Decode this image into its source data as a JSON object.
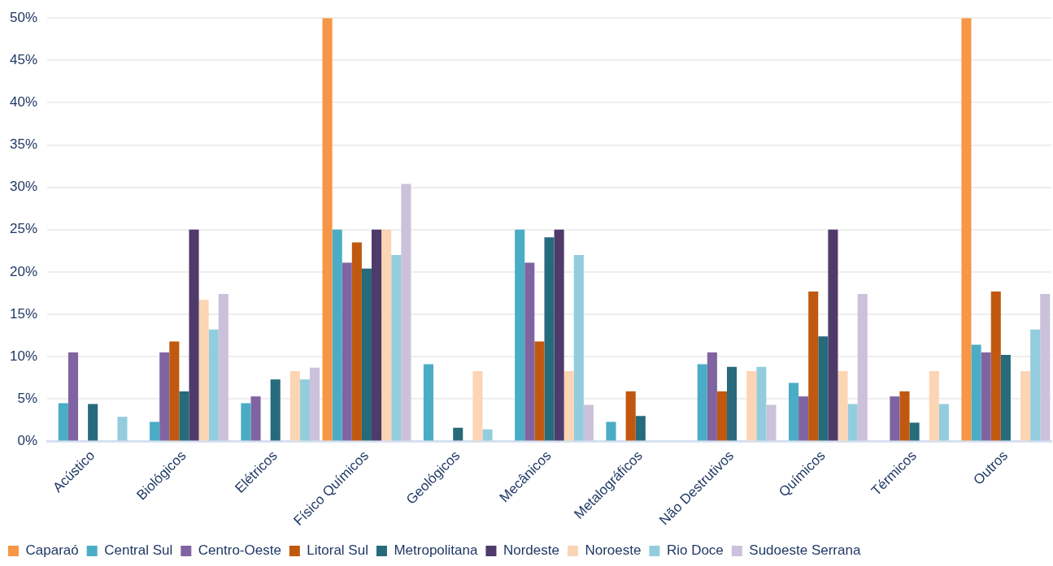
{
  "chart_data": {
    "type": "bar",
    "categories": [
      "Acústico",
      "Biológicos",
      "Elétricos",
      "Físico Químicos",
      "Geológicos",
      "Mecânicos",
      "Metalográficos",
      "Não Destrutivos",
      "Químicos",
      "Térmicos",
      "Outros"
    ],
    "series": [
      {
        "name": "Caparaó",
        "color": "#f79646",
        "values": [
          0,
          0,
          0,
          50,
          0,
          0,
          0,
          0,
          0,
          0,
          50
        ]
      },
      {
        "name": "Central Sul",
        "color": "#4bacc6",
        "values": [
          4.5,
          2.3,
          4.5,
          25,
          9.1,
          25,
          2.3,
          9.1,
          6.9,
          0,
          11.4
        ]
      },
      {
        "name": "Centro-Oeste",
        "color": "#8064a2",
        "values": [
          10.5,
          10.5,
          5.3,
          21.1,
          0,
          21.1,
          0,
          10.5,
          5.3,
          5.3,
          10.5
        ]
      },
      {
        "name": "Litoral Sul",
        "color": "#c0590f",
        "values": [
          0,
          11.8,
          0,
          23.5,
          0,
          11.8,
          5.9,
          5.9,
          17.7,
          5.9,
          17.7
        ]
      },
      {
        "name": "Metropolitana",
        "color": "#276a7c",
        "values": [
          4.4,
          5.9,
          7.3,
          20.4,
          1.6,
          24.1,
          3.0,
          8.8,
          12.4,
          2.2,
          10.2
        ]
      },
      {
        "name": "Nordeste",
        "color": "#4f3b6a",
        "values": [
          0,
          25,
          0,
          25,
          0,
          25,
          0,
          0,
          25,
          0,
          0
        ]
      },
      {
        "name": "Noroeste",
        "color": "#fcd5b5",
        "values": [
          0,
          16.7,
          8.3,
          25,
          8.3,
          8.3,
          0,
          8.3,
          8.3,
          8.3,
          8.3
        ]
      },
      {
        "name": "Rio Doce",
        "color": "#93cddd",
        "values": [
          2.9,
          13.2,
          7.3,
          22.0,
          1.4,
          22.0,
          0,
          8.8,
          4.4,
          4.4,
          13.2
        ]
      },
      {
        "name": "Sudoeste Serrana",
        "color": "#ccc1da",
        "values": [
          0,
          17.4,
          8.7,
          30.4,
          0,
          4.3,
          0,
          4.3,
          17.4,
          0,
          17.4
        ]
      }
    ],
    "ylim": [
      0,
      50
    ],
    "yticks": [
      {
        "value": 0,
        "label": "0%"
      },
      {
        "value": 5,
        "label": "5%"
      },
      {
        "value": 10,
        "label": "10%"
      },
      {
        "value": 15,
        "label": "15%"
      },
      {
        "value": 20,
        "label": "20%"
      },
      {
        "value": 25,
        "label": "25%"
      },
      {
        "value": 30,
        "label": "30%"
      },
      {
        "value": 35,
        "label": "35%"
      },
      {
        "value": 40,
        "label": "40%"
      },
      {
        "value": 45,
        "label": "45%"
      },
      {
        "value": 50,
        "label": "50%"
      }
    ],
    "grid": "y",
    "legend": "bottom"
  }
}
